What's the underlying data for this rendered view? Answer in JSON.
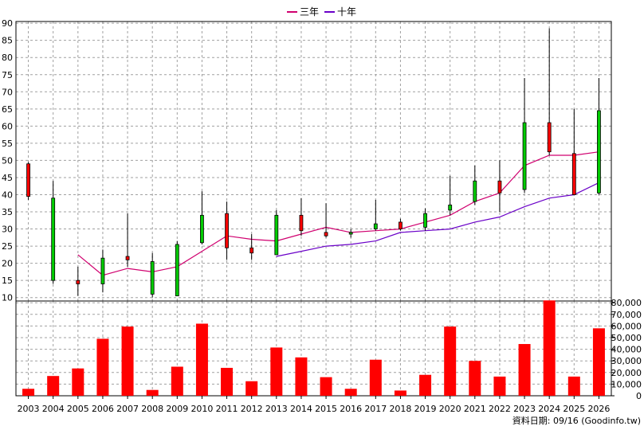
{
  "chart_data": [
    {
      "type": "candlestick",
      "x": [
        "2003",
        "2004",
        "2005",
        "2006",
        "2007",
        "2008",
        "2009",
        "2010",
        "2011",
        "2012",
        "2013",
        "2014",
        "2015",
        "2016",
        "2017",
        "2018",
        "2019",
        "2020",
        "2021",
        "2022",
        "2023",
        "2024",
        "2025",
        "2026"
      ],
      "ohlc": [
        {
          "open": 39.5,
          "high": 49.5,
          "low": 38.5,
          "close": 49
        },
        {
          "open": 39,
          "high": 44,
          "low": 14,
          "close": 15
        },
        {
          "open": 14,
          "high": 19,
          "low": 10.5,
          "close": 15
        },
        {
          "open": 21.5,
          "high": 24,
          "low": 11.5,
          "close": 14
        },
        {
          "open": 21,
          "high": 34.5,
          "low": 19,
          "close": 22
        },
        {
          "open": 20.5,
          "high": 23,
          "low": 10,
          "close": 11
        },
        {
          "open": 25.5,
          "high": 26.5,
          "low": 10.5,
          "close": 10.5
        },
        {
          "open": 34,
          "high": 41,
          "low": 25.5,
          "close": 26
        },
        {
          "open": 24.5,
          "high": 38,
          "low": 21,
          "close": 34.5
        },
        {
          "open": 23,
          "high": 28.5,
          "low": 21,
          "close": 24.5
        },
        {
          "open": 34,
          "high": 35.5,
          "low": 22.5,
          "close": 22.5
        },
        {
          "open": 29.5,
          "high": 39,
          "low": 28,
          "close": 34
        },
        {
          "open": 28,
          "high": 37.5,
          "low": 27.5,
          "close": 29
        },
        {
          "open": 29,
          "high": 30,
          "low": 27.5,
          "close": 28.5
        },
        {
          "open": 31.5,
          "high": 38.5,
          "low": 29.5,
          "close": 30
        },
        {
          "open": 30,
          "high": 33,
          "low": 29.5,
          "close": 32
        },
        {
          "open": 34.5,
          "high": 36,
          "low": 29.5,
          "close": 30.5
        },
        {
          "open": 37,
          "high": 45.5,
          "low": 34,
          "close": 35.5
        },
        {
          "open": 44,
          "high": 48.5,
          "low": 37,
          "close": 38
        },
        {
          "open": 40.5,
          "high": 50,
          "low": 35,
          "close": 44
        },
        {
          "open": 61,
          "high": 74,
          "low": 40.5,
          "close": 41.5
        },
        {
          "open": 52.5,
          "high": 88.5,
          "low": 51.5,
          "close": 61
        },
        {
          "open": 40,
          "high": 65,
          "low": 40,
          "close": 52
        },
        {
          "open": 64.5,
          "high": 74,
          "low": 40,
          "close": 40.5
        }
      ],
      "series": [
        {
          "name": "三年",
          "color": "#d0006f",
          "values": [
            null,
            null,
            22.5,
            16.5,
            18.5,
            17.5,
            19,
            23.5,
            28,
            27,
            26.5,
            28.5,
            30.5,
            29,
            29.5,
            30,
            32,
            34,
            38,
            40.5,
            48.5,
            51.5,
            51.5,
            52.5
          ]
        },
        {
          "name": "十年",
          "color": "#6a00c8",
          "values": [
            null,
            null,
            null,
            null,
            null,
            null,
            null,
            null,
            null,
            null,
            22,
            23.5,
            25,
            25.5,
            26.5,
            29,
            29.5,
            30,
            32,
            33.5,
            36.5,
            39,
            40,
            43.5
          ]
        }
      ],
      "yticks": [
        10,
        15,
        20,
        25,
        30,
        35,
        40,
        45,
        50,
        55,
        60,
        65,
        70,
        75,
        80,
        85,
        90
      ],
      "ylim": [
        9,
        90.5
      ],
      "up_color": "#ff0000",
      "down_color": "#00cc00",
      "grid": true,
      "legend": "top-center"
    },
    {
      "type": "bar",
      "x": [
        "2003",
        "2004",
        "2005",
        "2006",
        "2007",
        "2008",
        "2009",
        "2010",
        "2011",
        "2012",
        "2013",
        "2014",
        "2015",
        "2016",
        "2017",
        "2018",
        "2019",
        "2020",
        "2021",
        "2022",
        "2023",
        "2024",
        "2025",
        "2026"
      ],
      "values": [
        6000,
        17000,
        23500,
        49000,
        59500,
        5000,
        25000,
        62000,
        24000,
        12500,
        41500,
        33000,
        16000,
        6000,
        31000,
        4500,
        18000,
        59500,
        30000,
        16500,
        44500,
        82000,
        16500,
        58000
      ],
      "color": "#ff0000",
      "yticks": [
        "0",
        "10,000",
        "20,000",
        "30,000",
        "40,000",
        "50,000",
        "60,000",
        "70,000",
        "80,000"
      ],
      "ylim": [
        0,
        81500
      ]
    }
  ],
  "source_note": "資料日期: 09/16  (Goodinfo.tw)"
}
